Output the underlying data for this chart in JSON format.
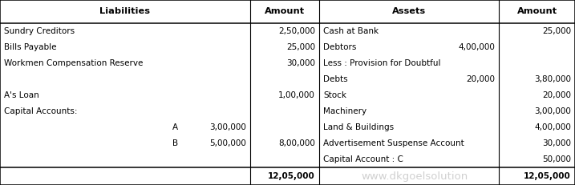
{
  "header_liabilities": "Liabilities",
  "header_amount_l": "Amount",
  "header_assets": "Assets",
  "header_amount_r": "Amount",
  "c0": 0.0,
  "c1": 0.435,
  "c2": 0.555,
  "c3": 0.868,
  "c4": 1.0,
  "liabilities_rows": [
    {
      "label": "Sundry Creditors",
      "indent": 0,
      "sub_amount": "",
      "amount": "2,50,000"
    },
    {
      "label": "Bills Payable",
      "indent": 0,
      "sub_amount": "",
      "amount": "25,000"
    },
    {
      "label": "Workmen Compensation Reserve",
      "indent": 0,
      "sub_amount": "",
      "amount": "30,000"
    },
    {
      "label": "",
      "indent": 0,
      "sub_amount": "",
      "amount": ""
    },
    {
      "label": "A's Loan",
      "indent": 0,
      "sub_amount": "",
      "amount": "1,00,000"
    },
    {
      "label": "Capital Accounts:",
      "indent": 0,
      "sub_amount": "",
      "amount": ""
    },
    {
      "label": "A",
      "indent": 1,
      "sub_amount": "3,00,000",
      "amount": ""
    },
    {
      "label": "B",
      "indent": 1,
      "sub_amount": "5,00,000",
      "amount": "8,00,000"
    },
    {
      "label": "",
      "indent": 0,
      "sub_amount": "",
      "amount": ""
    }
  ],
  "assets_rows": [
    {
      "label": "Cash at Bank",
      "sub_amount": "",
      "amount": "25,000"
    },
    {
      "label": "Debtors",
      "sub_amount": "4,00,000",
      "amount": ""
    },
    {
      "label": "Less : Provision for Doubtful",
      "sub_amount": "",
      "amount": ""
    },
    {
      "label": "Debts",
      "sub_amount": "20,000",
      "amount": "3,80,000"
    },
    {
      "label": "Stock",
      "sub_amount": "",
      "amount": "20,000"
    },
    {
      "label": "Machinery",
      "sub_amount": "",
      "amount": "3,00,000"
    },
    {
      "label": "Land & Buildings",
      "sub_amount": "",
      "amount": "4,00,000"
    },
    {
      "label": "Advertisement Suspense Account",
      "sub_amount": "",
      "amount": "30,000"
    },
    {
      "label": "Capital Account : C",
      "sub_amount": "",
      "amount": "50,000"
    }
  ],
  "total_amount_l": "12,05,000",
  "total_amount_r": "12,05,000",
  "watermark": "www.dkgoelsolution",
  "font_size": 7.5,
  "header_font_size": 8.2
}
